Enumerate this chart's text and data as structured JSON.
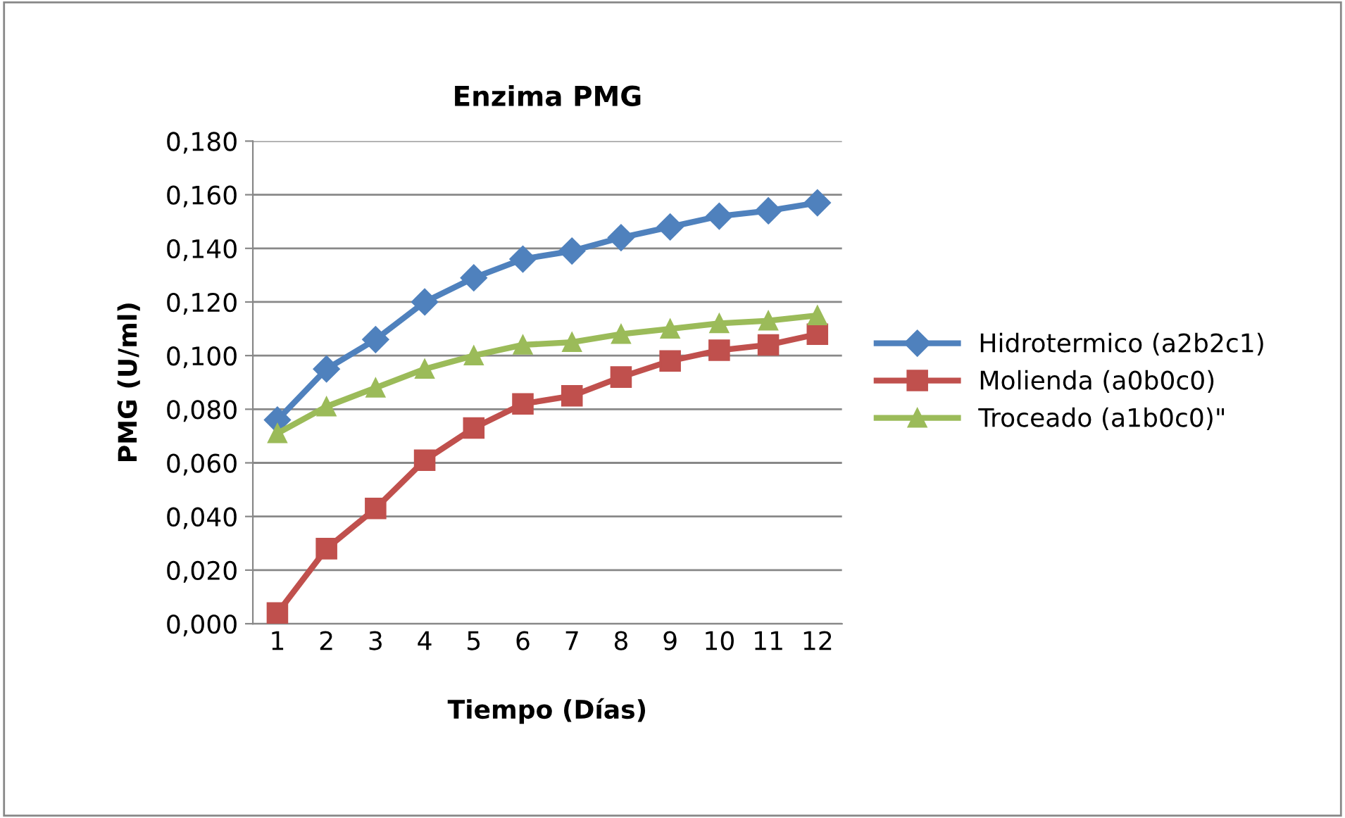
{
  "chart_data": {
    "type": "line",
    "title": "Enzima PMG",
    "xlabel": "Tiempo (Días)",
    "ylabel": "PMG (U/ml)",
    "categories": [
      "1",
      "2",
      "3",
      "4",
      "5",
      "6",
      "7",
      "8",
      "9",
      "10",
      "11",
      "12"
    ],
    "series": [
      {
        "name": "Hidrotermico (a2b2c1)",
        "color": "#4f81bd",
        "marker": "diamond",
        "values": [
          0.076,
          0.095,
          0.106,
          0.12,
          0.129,
          0.136,
          0.139,
          0.144,
          0.148,
          0.152,
          0.154,
          0.157
        ]
      },
      {
        "name": "Molienda (a0b0c0)",
        "color": "#c0504d",
        "marker": "square",
        "values": [
          0.004,
          0.028,
          0.043,
          0.061,
          0.073,
          0.082,
          0.085,
          0.092,
          0.098,
          0.102,
          0.104,
          0.108
        ]
      },
      {
        "name": "Troceado (a1b0c0)\"",
        "color": "#9bbb59",
        "marker": "triangle",
        "values": [
          0.071,
          0.081,
          0.088,
          0.095,
          0.1,
          0.104,
          0.105,
          0.108,
          0.11,
          0.112,
          0.113,
          0.115
        ]
      }
    ],
    "ylim": [
      0,
      0.18
    ],
    "yticks": [
      {
        "value": 0,
        "label": "0,000"
      },
      {
        "value": 0.02,
        "label": "0,020"
      },
      {
        "value": 0.04,
        "label": "0,040"
      },
      {
        "value": 0.06,
        "label": "0,060"
      },
      {
        "value": 0.08,
        "label": "0,080"
      },
      {
        "value": 0.1,
        "label": "0,100"
      },
      {
        "value": 0.12,
        "label": "0,120"
      },
      {
        "value": 0.14,
        "label": "0,140"
      },
      {
        "value": 0.16,
        "label": "0,160"
      },
      {
        "value": 0.18,
        "label": "0,180"
      }
    ],
    "grid": "y",
    "legend": "right",
    "line_style": "solid"
  }
}
